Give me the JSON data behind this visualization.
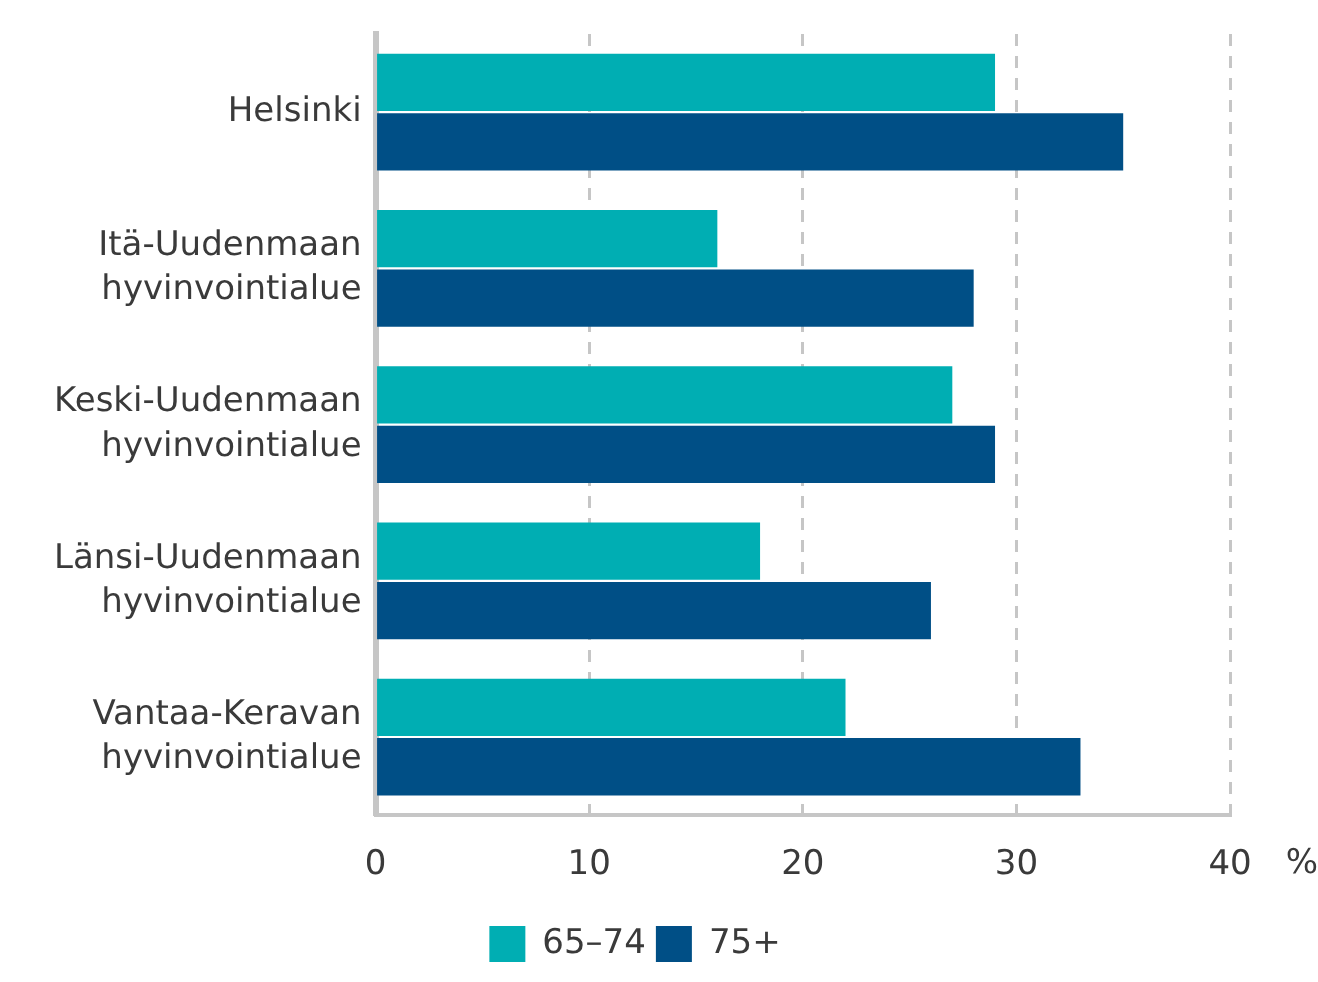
{
  "chart_data": {
    "type": "bar",
    "orientation": "horizontal",
    "categories": [
      "Helsinki",
      "Itä-Uudenmaan hyvinvointialue",
      "Keski-Uudenmaan hyvinvointialue",
      "Länsi-Uudenmaan hyvinvointialue",
      "Vantaa-Keravan hyvinvointialue"
    ],
    "series": [
      {
        "name": "65–74",
        "color": "#00aeb3",
        "values": [
          29,
          16,
          27,
          18,
          22
        ]
      },
      {
        "name": "75+",
        "color": "#004f86",
        "values": [
          35,
          28,
          29,
          26,
          33
        ]
      }
    ],
    "xlim": [
      0,
      40
    ],
    "xticks": [
      0,
      10,
      20,
      30,
      40
    ],
    "xlabel": "%",
    "grid": "x",
    "legend": "bottom"
  }
}
